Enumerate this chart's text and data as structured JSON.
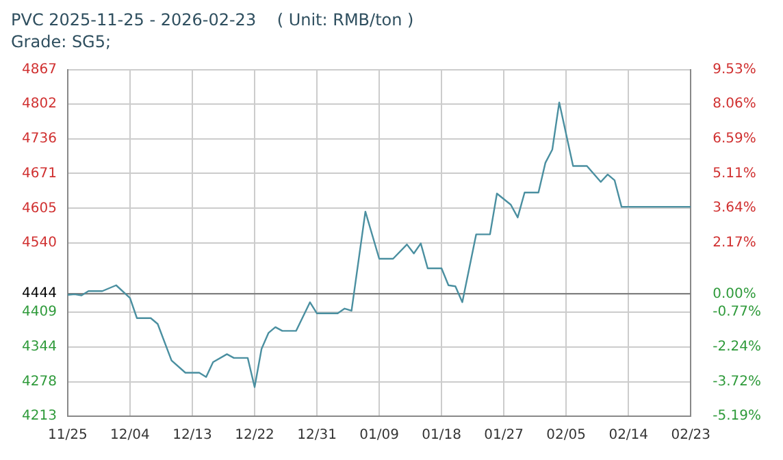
{
  "chart_data": {
    "type": "line",
    "title": "PVC 2025-11-25 - 2026-02-23    ( Unit: RMB/ton )",
    "subtitle": "Grade: SG5;",
    "x": [
      "2025-11-25",
      "2025-11-26",
      "2025-11-27",
      "2025-11-28",
      "2025-11-30",
      "2025-12-02",
      "2025-12-04",
      "2025-12-05",
      "2025-12-07",
      "2025-12-08",
      "2025-12-10",
      "2025-12-12",
      "2025-12-14",
      "2025-12-15",
      "2025-12-16",
      "2025-12-18",
      "2025-12-19",
      "2025-12-21",
      "2025-12-22",
      "2025-12-23",
      "2025-12-24",
      "2025-12-25",
      "2025-12-26",
      "2025-12-28",
      "2025-12-30",
      "2025-12-31",
      "2026-01-03",
      "2026-01-04",
      "2026-01-05",
      "2026-01-07",
      "2026-01-09",
      "2026-01-11",
      "2026-01-13",
      "2026-01-14",
      "2026-01-15",
      "2026-01-16",
      "2026-01-18",
      "2026-01-19",
      "2026-01-20",
      "2026-01-21",
      "2026-01-23",
      "2026-01-25",
      "2026-01-26",
      "2026-01-28",
      "2026-01-29",
      "2026-01-30",
      "2026-02-01",
      "2026-02-02",
      "2026-02-03",
      "2026-02-04",
      "2026-02-06",
      "2026-02-08",
      "2026-02-10",
      "2026-02-11",
      "2026-02-12",
      "2026-02-13",
      "2026-02-23"
    ],
    "series": [
      {
        "color": "#4a8fa0",
        "values": [
          4442,
          4443,
          4441,
          4449,
          4449,
          4460,
          4436,
          4398,
          4398,
          4387,
          4318,
          4295,
          4295,
          4287,
          4315,
          4330,
          4323,
          4323,
          4268,
          4340,
          4370,
          4381,
          4374,
          4374,
          4428,
          4407,
          4407,
          4416,
          4412,
          4599,
          4510,
          4510,
          4537,
          4520,
          4539,
          4492,
          4492,
          4460,
          4458,
          4428,
          4556,
          4556,
          4633,
          4612,
          4588,
          4635,
          4635,
          4691,
          4716,
          4805,
          4685,
          4685,
          4655,
          4669,
          4658,
          4608,
          4608
        ]
      }
    ],
    "xlim": [
      "2025-11-25",
      "2026-02-23"
    ],
    "xticks": [
      {
        "value": "2025-11-25",
        "label": "11/25"
      },
      {
        "value": "2025-12-04",
        "label": "12/04"
      },
      {
        "value": "2025-12-13",
        "label": "12/13"
      },
      {
        "value": "2025-12-22",
        "label": "12/22"
      },
      {
        "value": "2025-12-31",
        "label": "12/31"
      },
      {
        "value": "2026-01-09",
        "label": "01/09"
      },
      {
        "value": "2026-01-18",
        "label": "01/18"
      },
      {
        "value": "2026-01-27",
        "label": "01/27"
      },
      {
        "value": "2026-02-05",
        "label": "02/05"
      },
      {
        "value": "2026-02-14",
        "label": "02/14"
      },
      {
        "value": "2026-02-23",
        "label": "02/23"
      }
    ],
    "ylim": [
      4213,
      4867
    ],
    "yticks": [
      4213,
      4278,
      4344,
      4409,
      4444,
      4540,
      4605,
      4671,
      4736,
      4802,
      4867
    ],
    "y2lim": [
      -5.19,
      9.53
    ],
    "y2ticks": [
      {
        "value": -5.19,
        "label": "-5.19%"
      },
      {
        "value": -3.72,
        "label": "-3.72%"
      },
      {
        "value": -2.24,
        "label": "-2.24%"
      },
      {
        "value": -0.77,
        "label": "-0.77%"
      },
      {
        "value": 0,
        "label": "0.00%"
      },
      {
        "value": 2.17,
        "label": "2.17%"
      },
      {
        "value": 3.64,
        "label": "3.64%"
      },
      {
        "value": 5.11,
        "label": "5.11%"
      },
      {
        "value": 6.59,
        "label": "6.59%"
      },
      {
        "value": 8.06,
        "label": "8.06%"
      },
      {
        "value": 9.53,
        "label": "9.53%"
      }
    ],
    "ref_lines": [
      {
        "axis": "y",
        "value": 4444,
        "color": "#808080"
      }
    ],
    "grid": true,
    "legend": false,
    "marker": "none",
    "line_style": "solid"
  }
}
